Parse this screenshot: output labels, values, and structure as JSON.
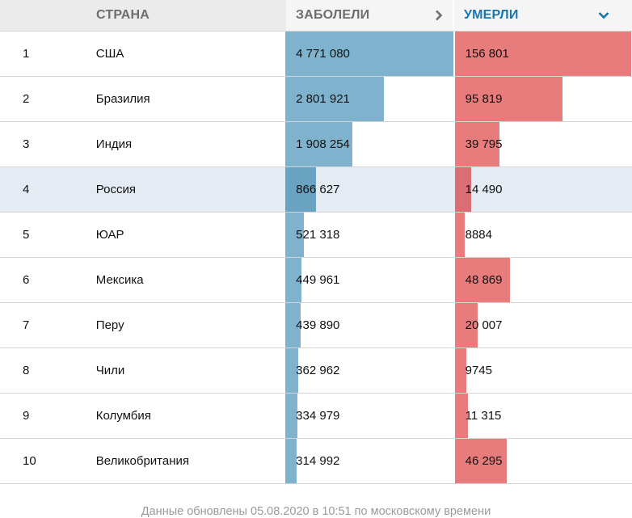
{
  "header": {
    "country": "СТРАНА",
    "cases": "ЗАБОЛЕЛИ",
    "deaths": "УМЕРЛИ",
    "cases_icon": "chevron-right-icon",
    "deaths_icon": "chevron-down-icon",
    "active_color": "#1b75ad"
  },
  "colors": {
    "cases_bar": "#7fb3cd",
    "deaths_bar": "#e87c7c",
    "highlight_row": "#e4ebf2"
  },
  "rows": [
    {
      "rank": "1",
      "country": "США",
      "cases": "4 771 080",
      "deaths": "156 801",
      "cases_n": 4771080,
      "deaths_n": 156801
    },
    {
      "rank": "2",
      "country": "Бразилия",
      "cases": "2 801 921",
      "deaths": "95 819",
      "cases_n": 2801921,
      "deaths_n": 95819
    },
    {
      "rank": "3",
      "country": "Индия",
      "cases": "1 908 254",
      "deaths": "39 795",
      "cases_n": 1908254,
      "deaths_n": 39795
    },
    {
      "rank": "4",
      "country": "Россия",
      "cases": "866 627",
      "deaths": "14 490",
      "cases_n": 866627,
      "deaths_n": 14490,
      "highlight": true
    },
    {
      "rank": "5",
      "country": "ЮАР",
      "cases": "521 318",
      "deaths": "8884",
      "cases_n": 521318,
      "deaths_n": 8884
    },
    {
      "rank": "6",
      "country": "Мексика",
      "cases": "449 961",
      "deaths": "48 869",
      "cases_n": 449961,
      "deaths_n": 48869
    },
    {
      "rank": "7",
      "country": "Перу",
      "cases": "439 890",
      "deaths": "20 007",
      "cases_n": 439890,
      "deaths_n": 20007
    },
    {
      "rank": "8",
      "country": "Чили",
      "cases": "362 962",
      "deaths": "9745",
      "cases_n": 362962,
      "deaths_n": 9745
    },
    {
      "rank": "9",
      "country": "Колумбия",
      "cases": "334 979",
      "deaths": "11 315",
      "cases_n": 334979,
      "deaths_n": 11315
    },
    {
      "rank": "10",
      "country": "Великобритания",
      "cases": "314 992",
      "deaths": "46 295",
      "cases_n": 314992,
      "deaths_n": 46295
    }
  ],
  "footer": "Данные обновлены 05.08.2020 в 10:51 по московскому времени"
}
